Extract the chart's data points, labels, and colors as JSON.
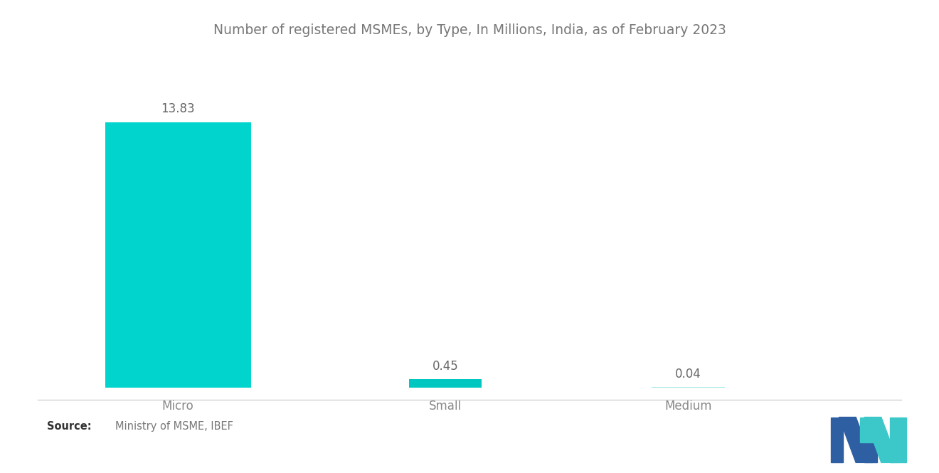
{
  "title": "Number of registered MSMEs, by Type, In Millions, India, as of February 2023",
  "categories": [
    "Micro",
    "Small",
    "Medium"
  ],
  "values": [
    13.83,
    0.45,
    0.04
  ],
  "bar_color_micro": "#00D4CC",
  "bar_color_small": "#00C8C0",
  "bar_color_medium": "#A0E8E4",
  "background_color": "#ffffff",
  "title_color": "#777777",
  "label_color": "#888888",
  "value_color": "#666666",
  "ylim": [
    0,
    16.0
  ],
  "title_fontsize": 13.5,
  "label_fontsize": 12,
  "value_fontsize": 12,
  "logo_blue": "#2E5FA3",
  "logo_teal": "#3CC8C8"
}
